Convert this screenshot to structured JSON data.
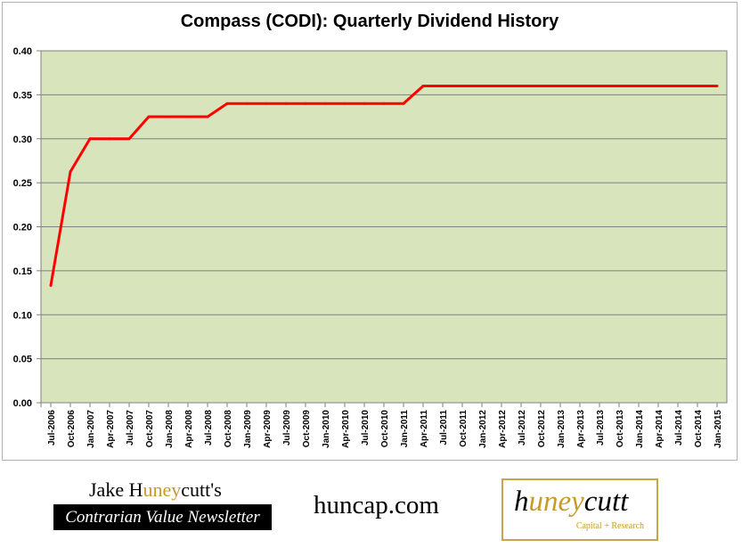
{
  "chart_data": {
    "type": "line",
    "title": "Compass (CODI):  Quarterly Dividend History",
    "xlabel": "",
    "ylabel": "",
    "ylim": [
      0,
      0.4
    ],
    "y_ticks": [
      "0.00",
      "0.05",
      "0.10",
      "0.15",
      "0.20",
      "0.25",
      "0.30",
      "0.35",
      "0.40"
    ],
    "categories": [
      "Jul-2006",
      "Oct-2006",
      "Jan-2007",
      "Apr-2007",
      "Jul-2007",
      "Oct-2007",
      "Jan-2008",
      "Apr-2008",
      "Jul-2008",
      "Oct-2008",
      "Jan-2009",
      "Apr-2009",
      "Jul-2009",
      "Oct-2009",
      "Jan-2010",
      "Apr-2010",
      "Jul-2010",
      "Oct-2010",
      "Jan-2011",
      "Apr-2011",
      "Jul-2011",
      "Oct-2011",
      "Jan-2012",
      "Apr-2012",
      "Jul-2012",
      "Oct-2012",
      "Jan-2013",
      "Apr-2013",
      "Jul-2013",
      "Oct-2013",
      "Jan-2014",
      "Apr-2014",
      "Jul-2014",
      "Oct-2014",
      "Jan-2015"
    ],
    "series": [
      {
        "values": [
          0.1333,
          0.2625,
          0.3,
          0.3,
          0.3,
          0.325,
          0.325,
          0.325,
          0.325,
          0.34,
          0.34,
          0.34,
          0.34,
          0.34,
          0.34,
          0.34,
          0.34,
          0.34,
          0.34,
          0.36,
          0.36,
          0.36,
          0.36,
          0.36,
          0.36,
          0.36,
          0.36,
          0.36,
          0.36,
          0.36,
          0.36,
          0.36,
          0.36,
          0.36,
          0.36
        ],
        "color": "#ff0000"
      }
    ],
    "plot_background": "#d8e4bc",
    "grid": true
  },
  "branding": {
    "name_part1": "Jake H",
    "name_accent": "uney",
    "name_part2": "cutt's",
    "newsletter": "Contrarian Value Newsletter",
    "url": "huncap.com",
    "logo_part1": "h",
    "logo_accent": "uney",
    "logo_part2": "cutt",
    "logo_sub": "Capital + Research",
    "accent_color": "#c89a2a"
  }
}
